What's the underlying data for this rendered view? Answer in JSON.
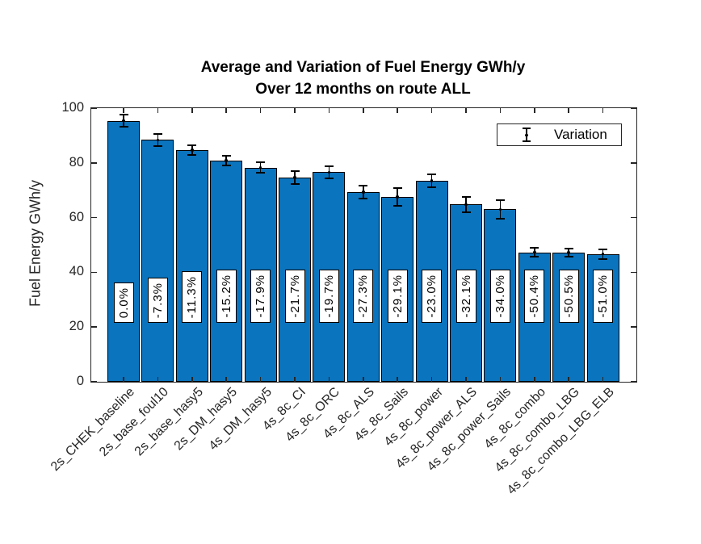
{
  "title": {
    "line1": "Average and Variation of Fuel Energy GWh/y",
    "line2": "Over 12 months on route ALL"
  },
  "y_axis": {
    "label": "Fuel Energy GWh/y",
    "ticks": [
      0,
      20,
      40,
      60,
      80,
      100
    ]
  },
  "legend": {
    "label": "Variation"
  },
  "colors": {
    "bar_fill": "#0b74be",
    "bar_edge": "#000000",
    "axis": "#262626",
    "error_bar": "#000000",
    "label_box_bg": "#ffffff"
  },
  "chart_data": {
    "type": "bar",
    "title": "Average and Variation of Fuel Energy GWh/y Over 12 months on route ALL",
    "xlabel": "",
    "ylabel": "Fuel Energy GWh/y",
    "ylim": [
      0,
      100
    ],
    "grid": false,
    "legend_position": "upper right",
    "legend_entries": [
      "Variation"
    ],
    "categories": [
      "2s_CHEK_baseline",
      "2s_base_foul10",
      "2s_base_hasy5",
      "2s_DM_hasy5",
      "4s_DM_hasy5",
      "4s_8c_CI",
      "4s_8c_ORC",
      "4s_8c_ALS",
      "4s_8c_Sails",
      "4s_8c_power",
      "4s_8c_power_ALS",
      "4s_8c_power_Sails",
      "4s_8c_combo",
      "4s_8c_combo_LBG",
      "4s_8c_combo_LBG_ELB"
    ],
    "series": [
      {
        "name": "Fuel Energy GWh/y",
        "values": [
          95.4,
          88.4,
          84.6,
          80.9,
          78.3,
          74.7,
          76.6,
          69.4,
          67.6,
          73.5,
          64.8,
          63.0,
          47.3,
          47.2,
          46.7
        ]
      }
    ],
    "errors": [
      2.3,
      2.2,
      1.8,
      1.8,
      2.0,
      2.4,
      2.3,
      2.3,
      3.3,
      2.3,
      2.8,
      3.3,
      1.6,
      1.6,
      1.8
    ],
    "bar_labels": [
      "0.0%",
      "-7.3%",
      "-11.3%",
      "-15.2%",
      "-17.9%",
      "-21.7%",
      "-19.7%",
      "-27.3%",
      "-29.1%",
      "-23.0%",
      "-32.1%",
      "-34.0%",
      "-50.4%",
      "-50.5%",
      "-51.0%"
    ]
  }
}
